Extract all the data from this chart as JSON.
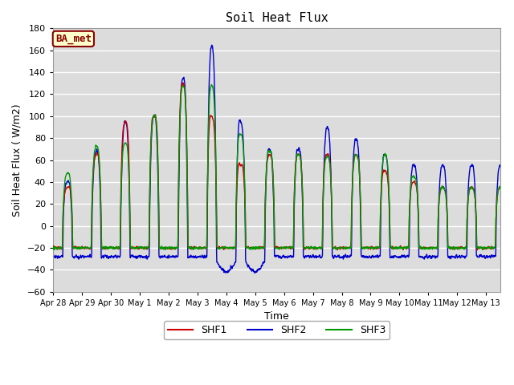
{
  "title": "Soil Heat Flux",
  "xlabel": "Time",
  "ylabel": "Soil Heat Flux ( W/m2)",
  "ylim": [
    -60,
    180
  ],
  "yticks": [
    -60,
    -40,
    -20,
    0,
    20,
    40,
    60,
    80,
    100,
    120,
    140,
    160,
    180
  ],
  "annotation_text": "BA_met",
  "annotation_color": "#8B0000",
  "annotation_bg": "#FFFFCC",
  "line_colors": {
    "SHF1": "#CC0000",
    "SHF2": "#0000CC",
    "SHF3": "#009900"
  },
  "line_widths": {
    "SHF1": 1.0,
    "SHF2": 1.0,
    "SHF3": 1.0
  },
  "bg_color": "#DCDCDC",
  "grid_color": "#FFFFFF",
  "xtick_labels": [
    "Apr 28",
    "Apr 29",
    "Apr 30",
    "May 1",
    "May 2",
    "May 3",
    "May 4",
    "May 5",
    "May 6",
    "May 7",
    "May 8",
    "May 9",
    "May 10",
    "May 11",
    "May 12",
    "May 13"
  ],
  "peak_amps_shf1": [
    35,
    65,
    95,
    100,
    130,
    100,
    55,
    65,
    65,
    65,
    65,
    50,
    40,
    35
  ],
  "peak_amps_shf2": [
    40,
    68,
    95,
    100,
    135,
    165,
    95,
    70,
    70,
    90,
    79,
    65,
    55,
    55
  ],
  "peak_amps_shf3": [
    47,
    73,
    75,
    100,
    128,
    128,
    83,
    68,
    65,
    63,
    65,
    65,
    45,
    35
  ],
  "night_shf1": -20,
  "night_shf2_deep": -32,
  "night_shf3": -20,
  "n_days": 15.5,
  "points_per_day": 144
}
